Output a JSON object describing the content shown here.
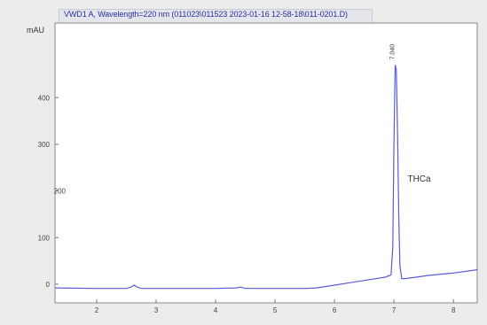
{
  "chart_data": {
    "type": "line",
    "title": "VWD1 A, Wavelength=220 nm (011023\\011523 2023-01-16 12-58-18\\011-0201.D)",
    "ylabel": "mAU",
    "xlabel": "",
    "xlim": [
      1.3,
      8.4
    ],
    "ylim": [
      -40,
      560
    ],
    "x_ticks": [
      2,
      3,
      4,
      5,
      6,
      7,
      8
    ],
    "y_ticks": [
      0,
      100,
      300,
      400
    ],
    "y_tick_labels": [
      "0",
      "100",
      "300",
      "400"
    ],
    "y_mid_label": "200",
    "grid": false,
    "peak_label": "THCa",
    "peak_rt_label": "7.040",
    "series": [
      {
        "color": "#5b5bd6",
        "x": [
          1.3,
          2.0,
          2.5,
          2.58,
          2.63,
          2.68,
          2.75,
          3.0,
          3.5,
          4.0,
          4.35,
          4.42,
          4.5,
          5.0,
          5.5,
          5.7,
          6.0,
          6.3,
          6.6,
          6.85,
          6.95,
          6.98,
          7.0,
          7.02,
          7.04,
          7.06,
          7.08,
          7.1,
          7.13,
          7.18,
          7.3,
          7.6,
          8.0,
          8.4
        ],
        "y": [
          -8,
          -9,
          -9,
          -6,
          -2,
          -6,
          -9,
          -9,
          -9,
          -9,
          -8,
          -6,
          -9,
          -9,
          -9,
          -8,
          -2,
          4,
          10,
          15,
          20,
          80,
          300,
          470,
          460,
          320,
          150,
          40,
          12,
          12,
          14,
          19,
          24,
          31
        ]
      }
    ]
  }
}
